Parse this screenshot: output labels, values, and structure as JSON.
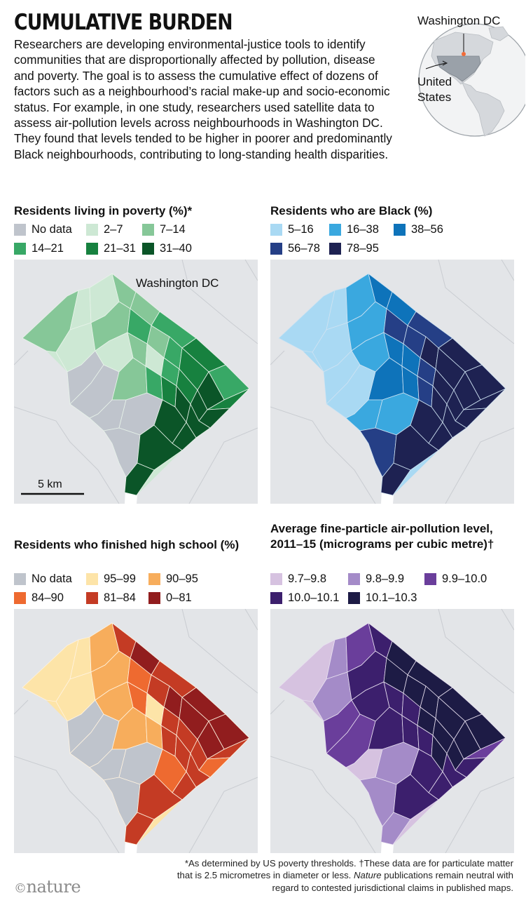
{
  "header": {
    "title": "CUMULATIVE BURDEN",
    "intro": "Researchers are developing environmental-justice tools to identify communities that are disproportionally affected by pollution, disease and poverty. The goal is to assess the cumulative effect of dozens of factors such as a neighbourhood’s racial make-up and socio-economic status. For example, in one study, researchers used satellite data to assess air-pollution levels across neighbourhoods in Washington DC. They found that levels tended to be higher in poorer and predominantly Black neighbourhoods, contributing to long-standing health disparities."
  },
  "locator": {
    "dc_label": "Washington DC",
    "us_label": "United States",
    "dc_marker_color": "#f26b38"
  },
  "colors": {
    "background_land": "#e3e5e8",
    "no_data": "#bfc4cc"
  },
  "maps": [
    {
      "id": "poverty",
      "title": "Residents living in poverty (%)*",
      "legend": [
        {
          "label": "No data",
          "color": "#bfc4cc"
        },
        {
          "label": "2–7",
          "color": "#cde8d4"
        },
        {
          "label": "7–14",
          "color": "#86c798"
        },
        {
          "label": "14–21",
          "color": "#38a866"
        },
        {
          "label": "21–31",
          "color": "#17813f"
        },
        {
          "label": "31–40",
          "color": "#0b5528"
        }
      ],
      "map_label": "Washington DC",
      "scale_label": "5 km"
    },
    {
      "id": "black",
      "title": "Residents who are Black (%)",
      "legend": [
        {
          "label": "5–16",
          "color": "#a9d9f3"
        },
        {
          "label": "16–38",
          "color": "#3aa8df"
        },
        {
          "label": "38–56",
          "color": "#0e73ba"
        },
        {
          "label": "56–78",
          "color": "#253f86"
        },
        {
          "label": "78–95",
          "color": "#1e2252"
        }
      ]
    },
    {
      "id": "highschool",
      "title": "Residents who finished high school (%)",
      "legend": [
        {
          "label": "No data",
          "color": "#bfc4cc"
        },
        {
          "label": "95–99",
          "color": "#fde4a8"
        },
        {
          "label": "90–95",
          "color": "#f7ad5c"
        },
        {
          "label": "84–90",
          "color": "#ee6a30"
        },
        {
          "label": "81–84",
          "color": "#c43b24"
        },
        {
          "label": "0–81",
          "color": "#911d1e"
        }
      ]
    },
    {
      "id": "pollution",
      "title": "Average fine-particle air-pollution level, 2011–15 (micrograms per cubic metre)†",
      "legend": [
        {
          "label": "9.7–9.8",
          "color": "#d6c2e0"
        },
        {
          "label": "9.8–9.9",
          "color": "#a48bc8"
        },
        {
          "label": "9.9–10.0",
          "color": "#6a3e9b"
        },
        {
          "label": "10.0–10.1",
          "color": "#3c1f6d"
        },
        {
          "label": "10.1–10.3",
          "color": "#1d1b45"
        }
      ]
    }
  ],
  "footnote": "*As determined by US poverty thresholds. †These data are for particulate matter that is 2.5 micrometres in diameter or less. Nature publications remain neutral with regard to contested jurisdictional claims in published maps.",
  "footnote_italic": "Nature",
  "logo": {
    "symbol": "©",
    "text": "nature"
  }
}
